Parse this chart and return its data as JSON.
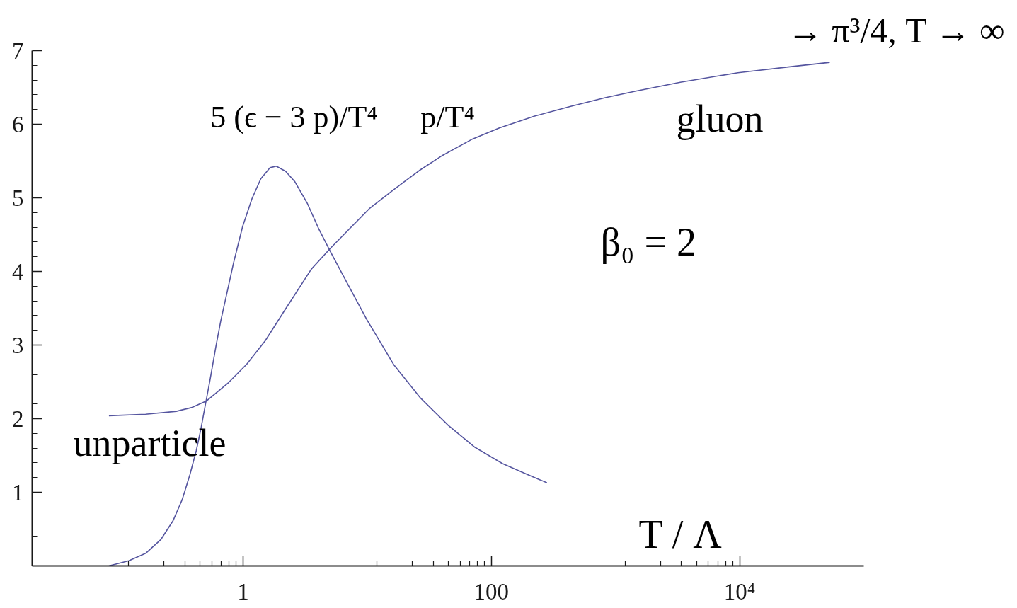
{
  "chart_data": {
    "type": "line",
    "xlabel": "T / Λ",
    "annotations": [
      "→ π³/4, T → ∞",
      "gluon",
      "unparticle",
      "β₀ = 2"
    ],
    "log": "x",
    "xlim": [
      0.02,
      100000
    ],
    "xticks": [
      {
        "value": 0.12,
        "label": null
      },
      {
        "value": 0.23,
        "label": null
      },
      {
        "value": 0.34,
        "label": null
      },
      {
        "value": 0.45,
        "label": null
      },
      {
        "value": 0.56,
        "label": null
      },
      {
        "value": 0.67,
        "label": null
      },
      {
        "value": 0.77,
        "label": null
      },
      {
        "value": 0.88,
        "label": null
      },
      1,
      {
        "value": 12,
        "label": null
      },
      {
        "value": 23,
        "label": null
      },
      {
        "value": 34,
        "label": null
      },
      {
        "value": 45,
        "label": null
      },
      {
        "value": 56,
        "label": null
      },
      {
        "value": 67,
        "label": null
      },
      {
        "value": 77,
        "label": null
      },
      {
        "value": 88,
        "label": null
      },
      100,
      {
        "value": 1200,
        "label": null
      },
      {
        "value": 2300,
        "label": null
      },
      {
        "value": 3400,
        "label": null
      },
      {
        "value": 4500,
        "label": null
      },
      {
        "value": 5600,
        "label": null
      },
      {
        "value": 6700,
        "label": null
      },
      {
        "value": 7700,
        "label": null
      },
      {
        "value": 8800,
        "label": null
      },
      {
        "value": 10000,
        "label": "10⁴"
      }
    ],
    "ylim": [
      0,
      7
    ],
    "yticks": [
      {
        "value": 0.2,
        "label": null
      },
      {
        "value": 0.4,
        "label": null
      },
      {
        "value": 0.6,
        "label": null
      },
      {
        "value": 0.8,
        "label": null
      },
      1,
      {
        "value": 1.2,
        "label": null
      },
      {
        "value": 1.4,
        "label": null
      },
      {
        "value": 1.6,
        "label": null
      },
      {
        "value": 1.8,
        "label": null
      },
      2,
      {
        "value": 2.2,
        "label": null
      },
      {
        "value": 2.4,
        "label": null
      },
      {
        "value": 2.6,
        "label": null
      },
      {
        "value": 2.8,
        "label": null
      },
      3,
      {
        "value": 3.2,
        "label": null
      },
      {
        "value": 3.4,
        "label": null
      },
      {
        "value": 3.6,
        "label": null
      },
      {
        "value": 3.8,
        "label": null
      },
      4,
      {
        "value": 4.2,
        "label": null
      },
      {
        "value": 4.4,
        "label": null
      },
      {
        "value": 4.6,
        "label": null
      },
      {
        "value": 4.8,
        "label": null
      },
      5,
      {
        "value": 5.2,
        "label": null
      },
      {
        "value": 5.4,
        "label": null
      },
      {
        "value": 5.6,
        "label": null
      },
      {
        "value": 5.8,
        "label": null
      },
      6,
      {
        "value": 6.2,
        "label": null
      },
      {
        "value": 6.4,
        "label": null
      },
      {
        "value": 6.6,
        "label": null
      },
      {
        "value": 6.8,
        "label": null
      },
      7
    ],
    "series": [
      {
        "name": "5 (ϵ − 3 p)/T⁴",
        "color": "#55559f",
        "x": [
          0.083,
          0.12,
          0.164,
          0.218,
          0.272,
          0.323,
          0.373,
          0.42,
          0.457,
          0.498,
          0.542,
          0.605,
          0.661,
          0.836,
          0.991,
          1.18,
          1.39,
          1.65,
          1.85,
          2.2,
          2.61,
          3.28,
          4.09,
          5.01,
          6.95,
          9.89,
          16.4,
          26.9,
          44.9,
          73.8,
          123,
          202,
          280
        ],
        "values": [
          0,
          0.07,
          0.17,
          0.36,
          0.61,
          0.9,
          1.24,
          1.57,
          1.86,
          2.2,
          2.53,
          2.99,
          3.33,
          4.11,
          4.61,
          4.99,
          5.26,
          5.41,
          5.43,
          5.36,
          5.22,
          4.93,
          4.57,
          4.28,
          3.83,
          3.35,
          2.73,
          2.28,
          1.91,
          1.61,
          1.39,
          1.23,
          1.13
        ]
      },
      {
        "name": "p/T⁴",
        "color": "#55559f",
        "x": [
          0.083,
          0.164,
          0.29,
          0.383,
          0.506,
          0.763,
          1.07,
          1.51,
          2.12,
          3.54,
          5.02,
          7.1,
          10.5,
          16.3,
          26.2,
          40.7,
          68.8,
          116,
          223,
          430,
          826,
          1455,
          3320,
          9700,
          28400,
          53200
        ],
        "values": [
          2.04,
          2.06,
          2.1,
          2.15,
          2.24,
          2.49,
          2.74,
          3.06,
          3.45,
          4.03,
          4.31,
          4.57,
          4.86,
          5.11,
          5.37,
          5.58,
          5.79,
          5.95,
          6.11,
          6.24,
          6.36,
          6.45,
          6.57,
          6.7,
          6.79,
          6.84
        ]
      }
    ]
  }
}
